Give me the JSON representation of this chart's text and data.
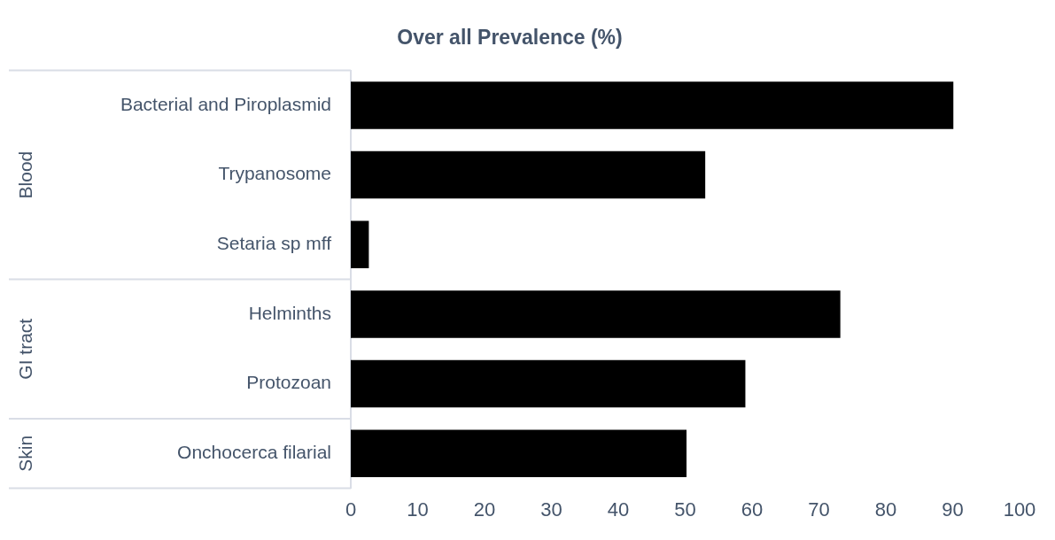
{
  "chart_data": {
    "type": "bar",
    "orientation": "horizontal",
    "title": "Over all Prevalence (%)",
    "categories": [
      "Bacterial and Piroplasmid",
      "Trypanosome",
      "Setaria sp mff",
      "Helminths",
      "Protozoan",
      "Onchocerca filarial"
    ],
    "values": [
      90.1,
      53.0,
      2.7,
      73.2,
      59.0,
      50.2
    ],
    "color": "#000000",
    "xlim": [
      0,
      100
    ],
    "xticks": [
      0,
      10,
      20,
      30,
      40,
      50,
      60,
      70,
      80,
      90,
      100
    ],
    "grid": false,
    "legend": false,
    "annotations": [
      "Blood",
      "GI tract",
      "Skin"
    ]
  }
}
